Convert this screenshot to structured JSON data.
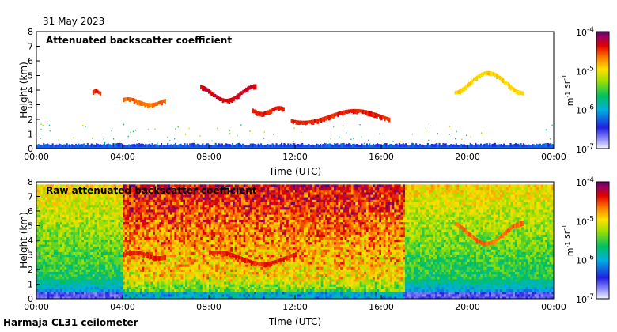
{
  "date": "31 May 2023",
  "footer": "Harmaja CL31 ceilometer",
  "chart_data": [
    {
      "type": "heatmap",
      "title": "Attenuated backscatter coefficient",
      "xlabel": "Time (UTC)",
      "ylabel": "Height (km)",
      "x_ticks": [
        "00:00",
        "04:00",
        "08:00",
        "12:00",
        "16:00",
        "20:00",
        "00:00"
      ],
      "y_ticks": [
        "0",
        "1",
        "2",
        "3",
        "4",
        "5",
        "6",
        "7",
        "8"
      ],
      "xlim": [
        0,
        24
      ],
      "ylim": [
        0,
        8
      ],
      "colorbar": {
        "scale": "log",
        "range": [
          1e-07,
          0.0001
        ],
        "tick_labels": [
          "10-7",
          "10-6",
          "10-5",
          "10-4"
        ],
        "unit": "m-1 sr-1"
      },
      "features": {
        "surface_layer": {
          "top_km": 0.3,
          "value": 3e-07
        },
        "cloud_segments": [
          {
            "t": [
              2.6,
              3.0
            ],
            "h": [
              3.8,
              4.0
            ],
            "value": 3e-05
          },
          {
            "t": [
              4.0,
              6.0
            ],
            "h": [
              3.0,
              3.4
            ],
            "value": 2e-05
          },
          {
            "t": [
              7.6,
              10.2
            ],
            "h": [
              3.3,
              4.3
            ],
            "value": 4e-05
          },
          {
            "t": [
              10.0,
              11.5
            ],
            "h": [
              2.4,
              2.8
            ],
            "value": 3e-05
          },
          {
            "t": [
              11.8,
              16.4
            ],
            "h": [
              1.8,
              2.6
            ],
            "value": 3e-05
          },
          {
            "t": [
              19.4,
              22.6
            ],
            "h": [
              3.8,
              5.2
            ],
            "value": 1e-05
          }
        ]
      }
    },
    {
      "type": "heatmap",
      "title": "Raw attenuated backscatter coefficient",
      "xlabel": "Time (UTC)",
      "ylabel": "Height (km)",
      "x_ticks": [
        "00:00",
        "04:00",
        "08:00",
        "12:00",
        "16:00",
        "20:00",
        "00:00"
      ],
      "y_ticks": [
        "0",
        "1",
        "2",
        "3",
        "4",
        "5",
        "6",
        "7",
        "8"
      ],
      "xlim": [
        0,
        24
      ],
      "ylim": [
        0,
        8
      ],
      "colorbar": {
        "scale": "log",
        "range": [
          1e-07,
          0.0001
        ],
        "tick_labels": [
          "10-7",
          "10-6",
          "10-5",
          "10-4"
        ],
        "unit": "m-1 sr-1"
      },
      "features": {
        "noisy_period": [
          4.0,
          17.0
        ],
        "signal_top_km": 7.7,
        "cloud_segments": [
          {
            "t": [
              4.0,
              6.0
            ],
            "h": [
              2.8,
              3.2
            ],
            "value": 3e-05
          },
          {
            "t": [
              8.0,
              12.0
            ],
            "h": [
              2.4,
              3.2
            ],
            "value": 3e-05
          },
          {
            "t": [
              19.4,
              22.6
            ],
            "h": [
              3.8,
              5.2
            ],
            "value": 2e-05
          }
        ]
      }
    }
  ]
}
